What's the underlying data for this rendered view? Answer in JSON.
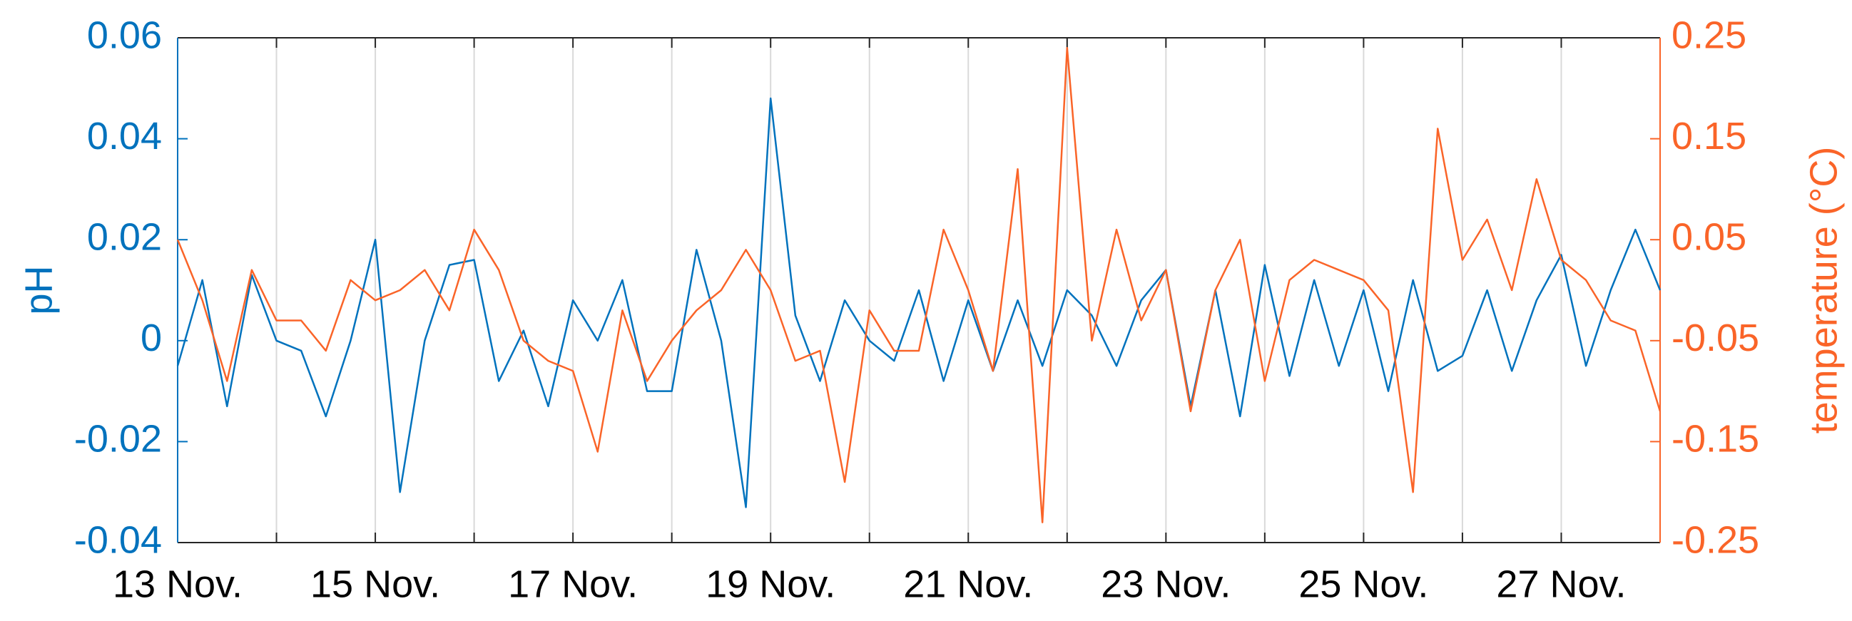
{
  "chart_data": {
    "type": "line",
    "ylabel": "pH",
    "y2label": "temperature (°C)",
    "x": [
      13.0,
      13.25,
      13.5,
      13.75,
      14.0,
      14.25,
      14.5,
      14.75,
      15.0,
      15.25,
      15.5,
      15.75,
      16.0,
      16.25,
      16.5,
      16.75,
      17.0,
      17.25,
      17.5,
      17.75,
      18.0,
      18.25,
      18.5,
      18.75,
      19.0,
      19.25,
      19.5,
      19.75,
      20.0,
      20.25,
      20.5,
      20.75,
      21.0,
      21.25,
      21.5,
      21.75,
      22.0,
      22.25,
      22.5,
      22.75,
      23.0,
      23.25,
      23.5,
      23.75,
      24.0,
      24.25,
      24.5,
      24.75,
      25.0,
      25.25,
      25.5,
      25.75,
      26.0,
      26.25,
      26.5,
      26.75,
      27.0,
      27.25,
      27.5,
      27.75,
      28.0
    ],
    "series": [
      {
        "color": "#0072bd",
        "axis": "y",
        "values": [
          -0.005,
          0.012,
          -0.013,
          0.013,
          0.0,
          -0.002,
          -0.015,
          0.0,
          0.02,
          -0.03,
          0.0,
          0.015,
          0.016,
          -0.008,
          0.002,
          -0.013,
          0.008,
          0.0,
          0.012,
          -0.01,
          -0.01,
          0.018,
          0.0,
          -0.033,
          0.048,
          0.005,
          -0.008,
          0.008,
          0.0,
          -0.004,
          0.01,
          -0.008,
          0.008,
          -0.006,
          0.008,
          -0.005,
          0.01,
          0.005,
          -0.005,
          0.008,
          0.014,
          -0.013,
          0.01,
          -0.015,
          0.015,
          -0.007,
          0.012,
          -0.005,
          0.01,
          -0.01,
          0.012,
          -0.006,
          -0.003,
          0.01,
          -0.006,
          0.008,
          0.017,
          -0.005,
          0.01,
          0.022,
          0.01
        ]
      },
      {
        "color": "#fa6428",
        "axis": "y2",
        "values": [
          0.05,
          -0.01,
          -0.09,
          0.02,
          -0.03,
          -0.03,
          -0.06,
          0.01,
          -0.01,
          0.0,
          0.02,
          -0.02,
          0.06,
          0.02,
          -0.05,
          -0.07,
          -0.08,
          -0.16,
          -0.02,
          -0.09,
          -0.05,
          -0.02,
          0.0,
          0.04,
          0.0,
          -0.07,
          -0.06,
          -0.19,
          -0.02,
          -0.06,
          -0.06,
          0.06,
          0.0,
          -0.08,
          0.12,
          -0.23,
          0.24,
          -0.05,
          0.06,
          -0.03,
          0.02,
          -0.12,
          0.0,
          0.05,
          -0.09,
          0.01,
          0.03,
          0.02,
          0.01,
          -0.02,
          -0.2,
          0.16,
          0.03,
          0.07,
          0.0,
          0.11,
          0.03,
          0.01,
          -0.03,
          -0.04,
          -0.12
        ]
      }
    ],
    "xlim": [
      13,
      28
    ],
    "xticks": [
      {
        "value": 13,
        "label": "13 Nov."
      },
      {
        "value": 14,
        "label": null
      },
      {
        "value": 15,
        "label": "15 Nov."
      },
      {
        "value": 16,
        "label": null
      },
      {
        "value": 17,
        "label": "17 Nov."
      },
      {
        "value": 18,
        "label": null
      },
      {
        "value": 19,
        "label": "19 Nov."
      },
      {
        "value": 20,
        "label": null
      },
      {
        "value": 21,
        "label": "21 Nov."
      },
      {
        "value": 22,
        "label": null
      },
      {
        "value": 23,
        "label": "23 Nov."
      },
      {
        "value": 24,
        "label": null
      },
      {
        "value": 25,
        "label": "25 Nov."
      },
      {
        "value": 26,
        "label": null
      },
      {
        "value": 27,
        "label": "27 Nov."
      },
      {
        "value": 28,
        "label": null
      }
    ],
    "ylim": [
      -0.04,
      0.06
    ],
    "yticks": [
      0.06,
      0.04,
      0.02,
      0,
      -0.02,
      -0.04
    ],
    "y2lim": [
      -0.25,
      0.25
    ],
    "y2ticks": [
      0.25,
      0.15,
      0.05,
      -0.05,
      -0.15,
      -0.25
    ],
    "ycolor": "#0072bd",
    "y2color": "#fa6428",
    "grid": true
  }
}
